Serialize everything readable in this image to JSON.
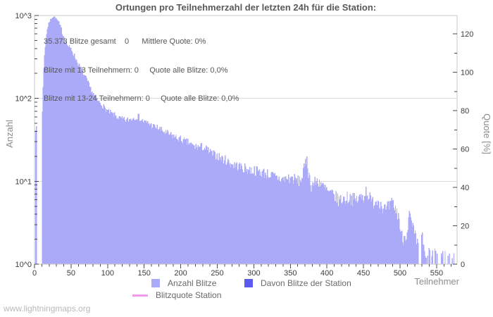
{
  "header": {
    "title": "Ortungen pro Teilnehmerzahl der letzten 24h für die Station:"
  },
  "annotation": {
    "lines": [
      "35.373 Blitze gesamt    0      Mittlere Quote: 0%",
      "Blitze mit 13 Teilnehmern: 0     Quote alle Blitze: 0,0%",
      "Blitze mit 13-24 Teilnehmern: 0     Quote alle Blitze: 0,0%"
    ]
  },
  "axes": {
    "left": {
      "label": "Anzahl",
      "ticks": [
        "10^3",
        "10^2",
        "10^1",
        "10^0"
      ]
    },
    "right": {
      "label": "Quote [%]",
      "ticks": [
        0,
        20,
        40,
        60,
        80,
        100,
        120
      ],
      "minor_step": 10
    },
    "x": {
      "label": "Teilnehmer",
      "ticks": [
        0,
        50,
        100,
        150,
        200,
        250,
        300,
        350,
        400,
        450,
        500,
        550
      ],
      "minor_step": 10,
      "minor_max": 570
    }
  },
  "legend": {
    "items": [
      {
        "label": "Anzahl Blitze"
      },
      {
        "label": "Davon Blitze der Station"
      },
      {
        "label": "Blitzquote Station"
      }
    ]
  },
  "footer": {
    "text": "www.lightningmaps.org"
  },
  "colors": {
    "bars": "#abaaf8",
    "station_bars": "#5b5bf0",
    "quote_line": "#f29aec",
    "grid": "#dcdcdc",
    "border": "#c9c9c9",
    "tick": "#4a4a4a",
    "tick_text": "#3c3c3c"
  },
  "chart_data": {
    "type": "bar",
    "title": "Ortungen pro Teilnehmerzahl der letzten 24h für die Station:",
    "xlabel": "Teilnehmer",
    "ylabel_left": "Anzahl",
    "ylabel_right": "Quote [%]",
    "y_scale": "log10",
    "ylim": [
      1,
      1000
    ],
    "right_ylim": [
      0,
      130
    ],
    "xlim": [
      0,
      578
    ],
    "grid": "horizontal-decades",
    "legend_position": "bottom",
    "stats": {
      "blitze_gesamt": "35.373",
      "mittlere_quote": "0%",
      "blitze_mit_13_teilnehmern": 0,
      "blitze_mit_13_24_teilnehmern": 0,
      "quote_alle_blitze": "0,0%"
    },
    "series": [
      {
        "name": "Anzahl Blitze",
        "render": "histogram-per-teilnehmer",
        "seed": 7,
        "anchors": [
          [
            0,
            1
          ],
          [
            1,
            42
          ],
          [
            2,
            45
          ],
          [
            3,
            1
          ],
          [
            9,
            1
          ],
          [
            10,
            70
          ],
          [
            11,
            140
          ],
          [
            12,
            230
          ],
          [
            13,
            330
          ],
          [
            14,
            420
          ],
          [
            15,
            520
          ],
          [
            16,
            600
          ],
          [
            17,
            680
          ],
          [
            18,
            740
          ],
          [
            19,
            800
          ],
          [
            20,
            850
          ],
          [
            21,
            890
          ],
          [
            22,
            920
          ],
          [
            24,
            960
          ],
          [
            26,
            970
          ],
          [
            28,
            940
          ],
          [
            30,
            890
          ],
          [
            32,
            830
          ],
          [
            34,
            760
          ],
          [
            36,
            680
          ],
          [
            38,
            600
          ],
          [
            40,
            545
          ],
          [
            43,
            470
          ],
          [
            46,
            420
          ],
          [
            50,
            385
          ],
          [
            53,
            340
          ],
          [
            56,
            300
          ],
          [
            60,
            255
          ],
          [
            64,
            220
          ],
          [
            68,
            185
          ],
          [
            72,
            160
          ],
          [
            76,
            130
          ],
          [
            80,
            112
          ],
          [
            85,
            96
          ],
          [
            90,
            86
          ],
          [
            95,
            77
          ],
          [
            100,
            70
          ],
          [
            105,
            65
          ],
          [
            110,
            62
          ],
          [
            115,
            58
          ],
          [
            120,
            56
          ],
          [
            125,
            55
          ],
          [
            130,
            56
          ],
          [
            135,
            58
          ],
          [
            141,
            61
          ],
          [
            145,
            55
          ],
          [
            150,
            52
          ],
          [
            155,
            50
          ],
          [
            160,
            47
          ],
          [
            165,
            45
          ],
          [
            170,
            43
          ],
          [
            175,
            40
          ],
          [
            180,
            38
          ],
          [
            185,
            36
          ],
          [
            190,
            35
          ],
          [
            195,
            33
          ],
          [
            200,
            32
          ],
          [
            205,
            30
          ],
          [
            210,
            29
          ],
          [
            215,
            27
          ],
          [
            220,
            26
          ],
          [
            225,
            26
          ],
          [
            230,
            26
          ],
          [
            235,
            24
          ],
          [
            240,
            22
          ],
          [
            245,
            21
          ],
          [
            250,
            20
          ],
          [
            255,
            19
          ],
          [
            260,
            18
          ],
          [
            265,
            17
          ],
          [
            270,
            16
          ],
          [
            275,
            15.5
          ],
          [
            280,
            15
          ],
          [
            285,
            14.5
          ],
          [
            290,
            14
          ],
          [
            295,
            13.7
          ],
          [
            300,
            13.5
          ],
          [
            305,
            13.2
          ],
          [
            310,
            13
          ],
          [
            315,
            12.5
          ],
          [
            320,
            12
          ],
          [
            325,
            11.5
          ],
          [
            330,
            11
          ],
          [
            335,
            10.8
          ],
          [
            340,
            10.5
          ],
          [
            345,
            10.8
          ],
          [
            350,
            11
          ],
          [
            355,
            10.5
          ],
          [
            360,
            10
          ],
          [
            365,
            11
          ],
          [
            370,
            16
          ],
          [
            372,
            20
          ],
          [
            374,
            13
          ],
          [
            378,
            9
          ],
          [
            382,
            9.5
          ],
          [
            386,
            10
          ],
          [
            390,
            10
          ],
          [
            394,
            8.5
          ],
          [
            398,
            8
          ],
          [
            400,
            7.5
          ],
          [
            405,
            7
          ],
          [
            410,
            6.5
          ],
          [
            415,
            6
          ],
          [
            420,
            6
          ],
          [
            425,
            6.2
          ],
          [
            430,
            6.5
          ],
          [
            435,
            6
          ],
          [
            440,
            6
          ],
          [
            445,
            6.3
          ],
          [
            450,
            6.6
          ],
          [
            453,
            7.8
          ],
          [
            456,
            7
          ],
          [
            460,
            5.5
          ],
          [
            465,
            5.8
          ],
          [
            470,
            6
          ],
          [
            475,
            5
          ],
          [
            480,
            4.5
          ],
          [
            485,
            5
          ],
          [
            490,
            5.5
          ],
          [
            493,
            4.5
          ],
          [
            497,
            4
          ],
          [
            500,
            2.5
          ],
          [
            503,
            2
          ],
          [
            506,
            2.2
          ],
          [
            509,
            2.5
          ],
          [
            512,
            4
          ],
          [
            515,
            3
          ],
          [
            518,
            2.5
          ],
          [
            521,
            2
          ],
          [
            524,
            1.6
          ],
          [
            527,
            1.4
          ],
          [
            530,
            2.2
          ],
          [
            533,
            1.3
          ],
          [
            536,
            1
          ],
          [
            539,
            1.4
          ],
          [
            542,
            1
          ],
          [
            545,
            1.5
          ],
          [
            548,
            1.2
          ],
          [
            551,
            1.3
          ],
          [
            554,
            1.4
          ],
          [
            557,
            1.2
          ],
          [
            560,
            1.4
          ],
          [
            563,
            1
          ],
          [
            566,
            1.3
          ],
          [
            569,
            1
          ],
          [
            572,
            1.2
          ],
          [
            575,
            1
          ],
          [
            577,
            1
          ]
        ]
      },
      {
        "name": "Davon Blitze der Station",
        "total": 0,
        "values_visible": false
      },
      {
        "name": "Blitzquote Station",
        "type": "line",
        "value_percent": 0,
        "visible": false
      }
    ]
  }
}
